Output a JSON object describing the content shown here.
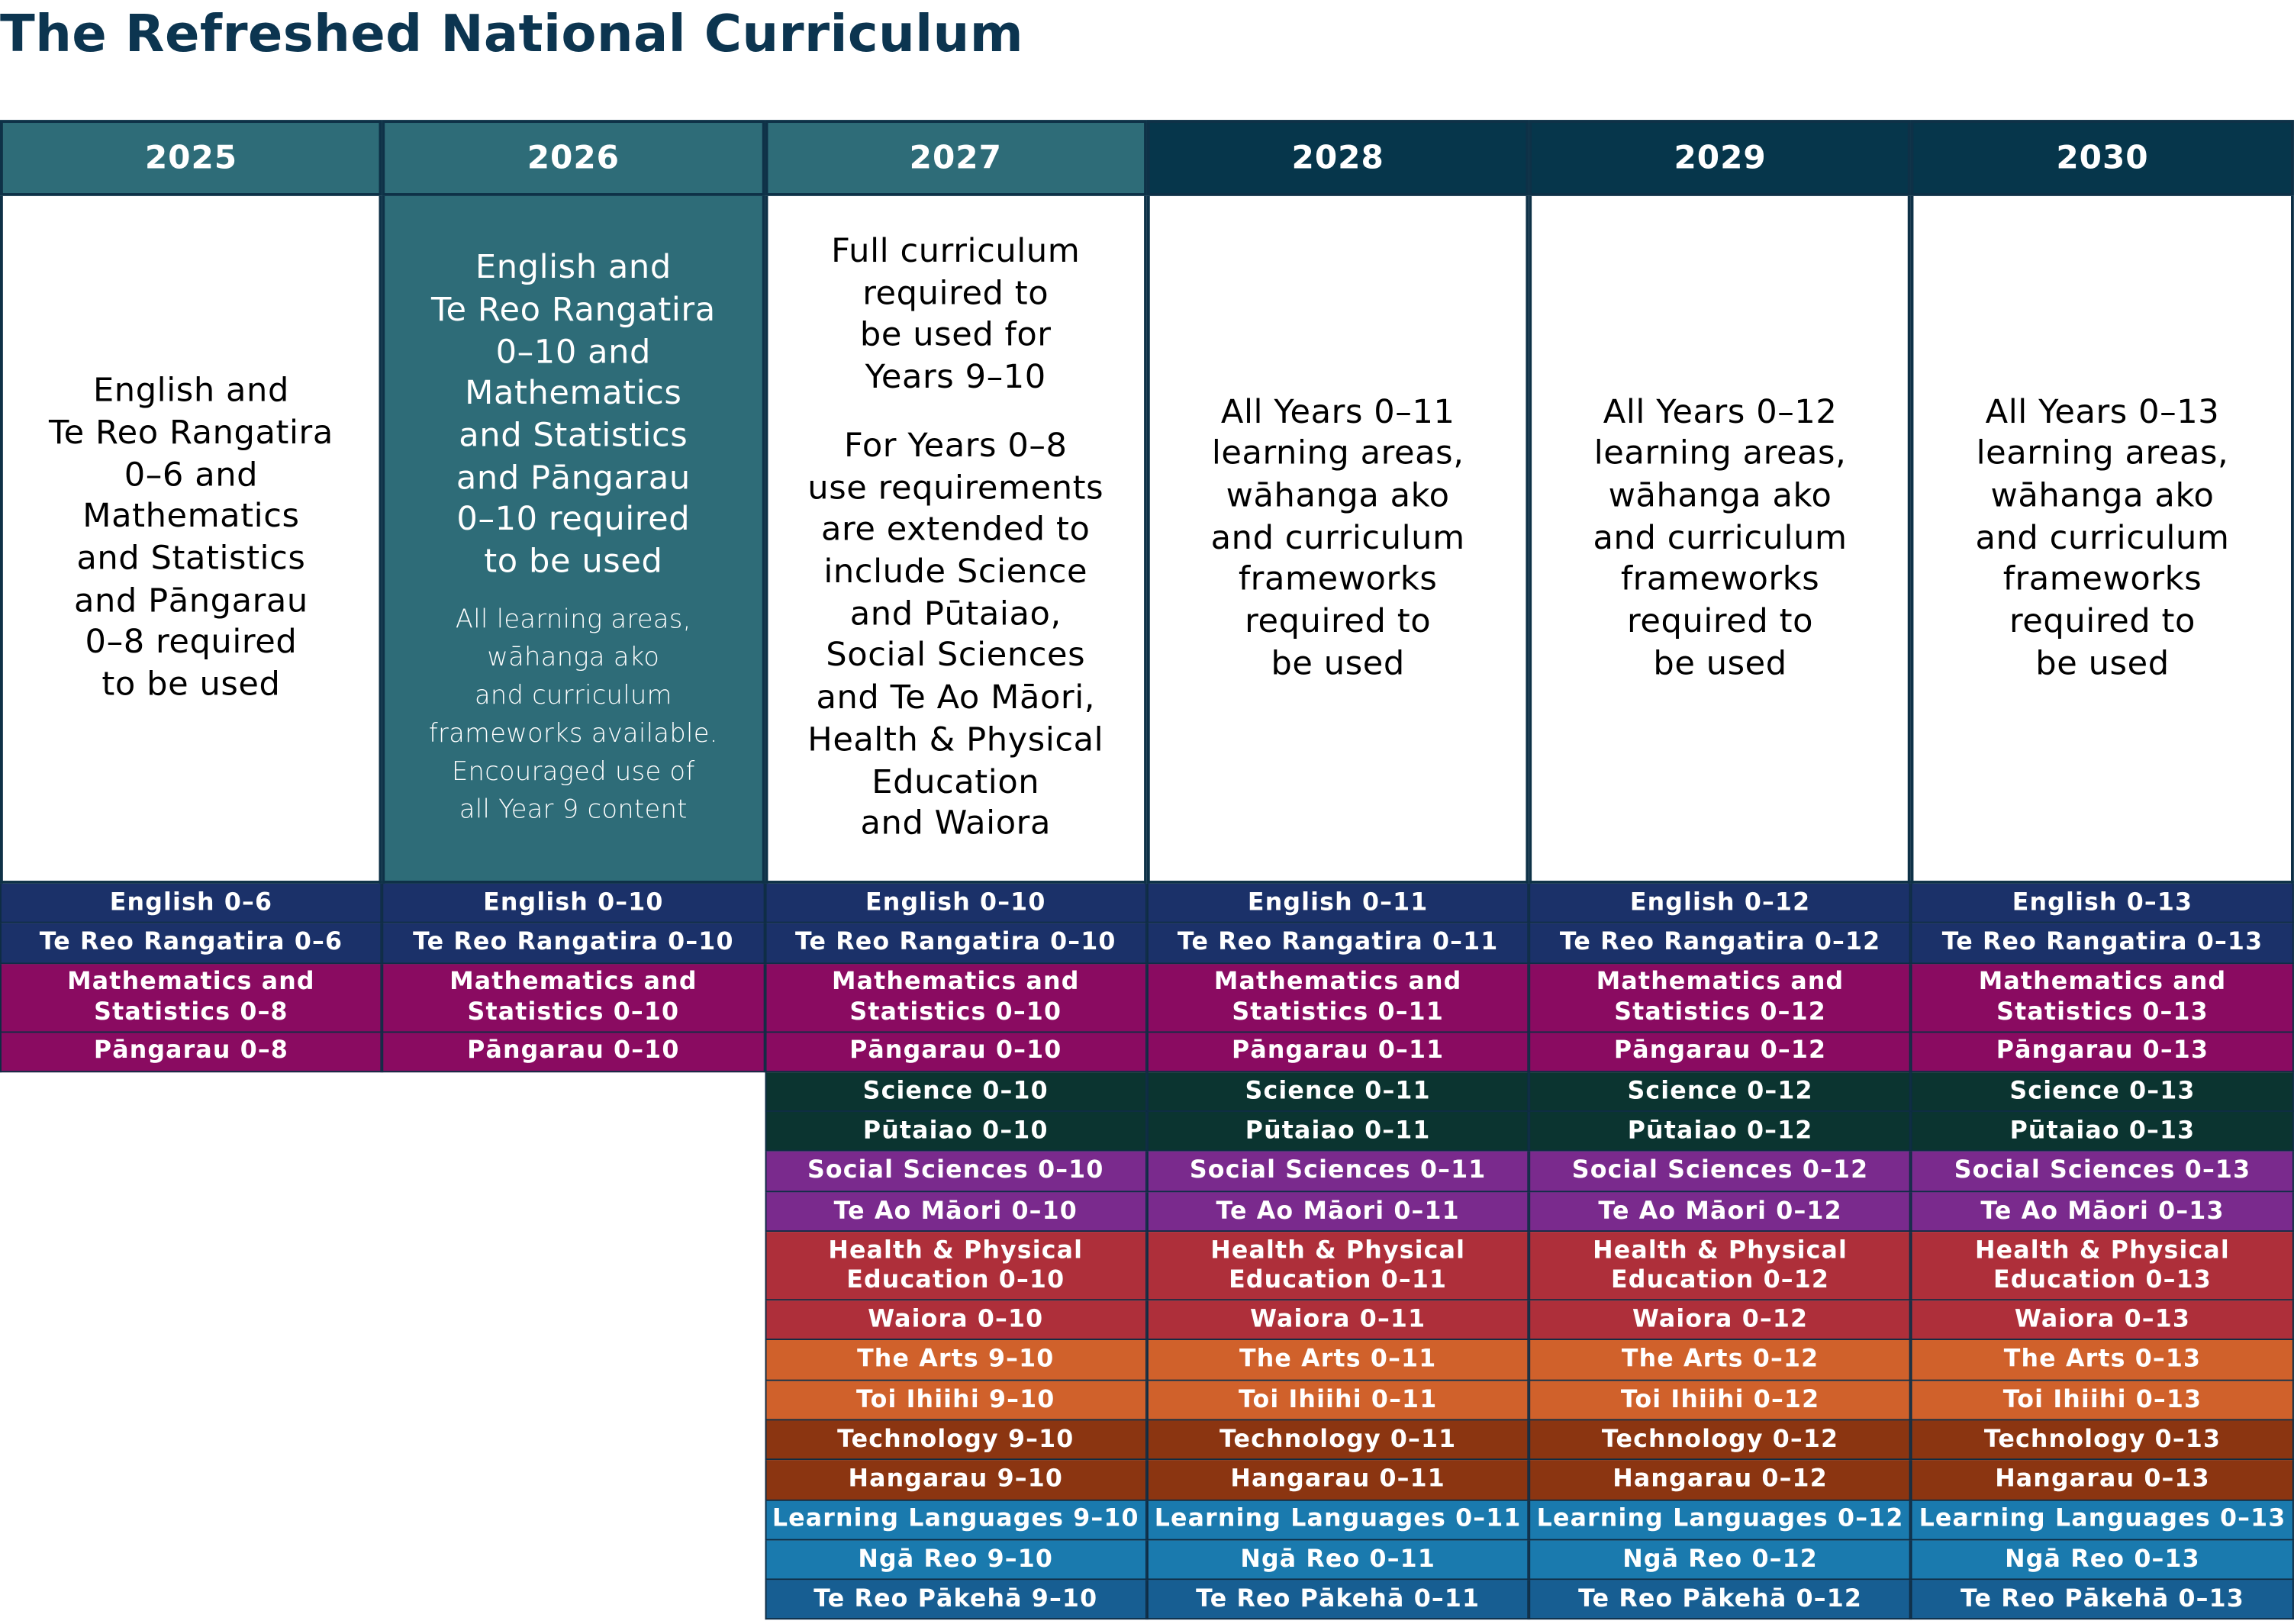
{
  "title": "The Refreshed National Curriculum",
  "columns": [
    {
      "year": "2025",
      "header_color": "#2e6c78",
      "body_color": "#ffffff",
      "text_color": "#000000",
      "paragraphs": [
        "English and\nTe Reo Rangatira\n0–6 and\nMathematics\nand Statistics\nand Pāngarau\n0–8 required\nto be used"
      ],
      "subjects": [
        {
          "label": "English 0–6",
          "color": "#1b3169"
        },
        {
          "label": "Te Reo Rangatira 0–6",
          "color": "#1b3169"
        },
        {
          "label": "Mathematics and\nStatistics 0–8",
          "color": "#8a0b61"
        },
        {
          "label": "Pāngarau 0–8",
          "color": "#8a0b61"
        }
      ]
    },
    {
      "year": "2026",
      "header_color": "#2e6c78",
      "body_color": "#2e6c78",
      "text_color": "#ffffff",
      "paragraphs": [
        "English and\nTe Reo Rangatira\n0–10 and\nMathematics\nand Statistics\nand Pāngarau\n0–10 required\nto be used"
      ],
      "note": "All learning areas,\nwāhanga ako\nand curriculum\nframeworks available.\nEncouraged use of\nall Year 9 content",
      "subjects": [
        {
          "label": "English 0–10",
          "color": "#1b3169"
        },
        {
          "label": "Te Reo Rangatira 0–10",
          "color": "#1b3169"
        },
        {
          "label": "Mathematics and\nStatistics 0–10",
          "color": "#8a0b61"
        },
        {
          "label": "Pāngarau 0–10",
          "color": "#8a0b61"
        }
      ]
    },
    {
      "year": "2027",
      "header_color": "#2e6c78",
      "body_color": "#ffffff",
      "text_color": "#000000",
      "paragraphs": [
        "Full curriculum\nrequired to\nbe used for\nYears 9–10",
        "For Years 0–8\nuse requirements\nare extended to\ninclude Science\nand Pūtaiao,\nSocial Sciences\nand Te Ao Māori,\nHealth & Physical\nEducation\nand Waiora"
      ],
      "subjects": [
        {
          "label": "English 0–10",
          "color": "#1b3169"
        },
        {
          "label": "Te Reo Rangatira 0–10",
          "color": "#1b3169"
        },
        {
          "label": "Mathematics and\nStatistics 0–10",
          "color": "#8a0b61"
        },
        {
          "label": "Pāngarau 0–10",
          "color": "#8a0b61"
        },
        {
          "label": "Science 0–10",
          "color": "#0b3430"
        },
        {
          "label": "Pūtaiao 0–10",
          "color": "#0b3430"
        },
        {
          "label": "Social Sciences 0–10",
          "color": "#7a2a8d"
        },
        {
          "label": "Te Ao Māori 0–10",
          "color": "#7a2a8d"
        },
        {
          "label": "Health & Physical\nEducation 0–10",
          "color": "#ae2f3a"
        },
        {
          "label": "Waiora 0–10",
          "color": "#ae2f3a"
        },
        {
          "label": "The Arts 9–10",
          "color": "#d0612b"
        },
        {
          "label": "Toi Ihiihi 9–10",
          "color": "#d0612b"
        },
        {
          "label": "Technology 9–10",
          "color": "#8b3511"
        },
        {
          "label": "Hangarau 9–10",
          "color": "#8b3511"
        },
        {
          "label": "Learning Languages 9–10",
          "color": "#1a7aae"
        },
        {
          "label": "Ngā Reo 9–10",
          "color": "#1a7aae"
        },
        {
          "label": "Te Reo Pākehā 9–10",
          "color": "#175e92"
        }
      ]
    },
    {
      "year": "2028",
      "header_color": "#06364b",
      "body_color": "#ffffff",
      "text_color": "#000000",
      "paragraphs": [
        "All Years 0–11\nlearning areas,\nwāhanga ako\nand curriculum\nframeworks\nrequired to\nbe used"
      ],
      "subjects": [
        {
          "label": "English 0–11",
          "color": "#1b3169"
        },
        {
          "label": "Te Reo Rangatira 0–11",
          "color": "#1b3169"
        },
        {
          "label": "Mathematics and\nStatistics 0–11",
          "color": "#8a0b61"
        },
        {
          "label": "Pāngarau 0–11",
          "color": "#8a0b61"
        },
        {
          "label": "Science 0–11",
          "color": "#0b3430"
        },
        {
          "label": "Pūtaiao 0–11",
          "color": "#0b3430"
        },
        {
          "label": "Social Sciences 0–11",
          "color": "#7a2a8d"
        },
        {
          "label": "Te Ao Māori 0–11",
          "color": "#7a2a8d"
        },
        {
          "label": "Health & Physical\nEducation 0–11",
          "color": "#ae2f3a"
        },
        {
          "label": "Waiora 0–11",
          "color": "#ae2f3a"
        },
        {
          "label": "The Arts 0–11",
          "color": "#d0612b"
        },
        {
          "label": "Toi Ihiihi 0–11",
          "color": "#d0612b"
        },
        {
          "label": "Technology 0–11",
          "color": "#8b3511"
        },
        {
          "label": "Hangarau 0–11",
          "color": "#8b3511"
        },
        {
          "label": "Learning Languages 0–11",
          "color": "#1a7aae"
        },
        {
          "label": "Ngā Reo 0–11",
          "color": "#1a7aae"
        },
        {
          "label": "Te Reo Pākehā 0–11",
          "color": "#175e92"
        }
      ]
    },
    {
      "year": "2029",
      "header_color": "#06364b",
      "body_color": "#ffffff",
      "text_color": "#000000",
      "paragraphs": [
        "All Years 0–12\nlearning areas,\nwāhanga ako\nand curriculum\nframeworks\nrequired to\nbe used"
      ],
      "subjects": [
        {
          "label": "English 0–12",
          "color": "#1b3169"
        },
        {
          "label": "Te Reo Rangatira 0–12",
          "color": "#1b3169"
        },
        {
          "label": "Mathematics and\nStatistics 0–12",
          "color": "#8a0b61"
        },
        {
          "label": "Pāngarau 0–12",
          "color": "#8a0b61"
        },
        {
          "label": "Science 0–12",
          "color": "#0b3430"
        },
        {
          "label": "Pūtaiao 0–12",
          "color": "#0b3430"
        },
        {
          "label": "Social Sciences 0–12",
          "color": "#7a2a8d"
        },
        {
          "label": "Te Ao Māori 0–12",
          "color": "#7a2a8d"
        },
        {
          "label": "Health & Physical\nEducation 0–12",
          "color": "#ae2f3a"
        },
        {
          "label": "Waiora 0–12",
          "color": "#ae2f3a"
        },
        {
          "label": "The Arts 0–12",
          "color": "#d0612b"
        },
        {
          "label": "Toi Ihiihi 0–12",
          "color": "#d0612b"
        },
        {
          "label": "Technology 0–12",
          "color": "#8b3511"
        },
        {
          "label": "Hangarau 0–12",
          "color": "#8b3511"
        },
        {
          "label": "Learning Languages 0–12",
          "color": "#1a7aae"
        },
        {
          "label": "Ngā Reo 0–12",
          "color": "#1a7aae"
        },
        {
          "label": "Te Reo Pākehā 0–12",
          "color": "#175e92"
        }
      ]
    },
    {
      "year": "2030",
      "header_color": "#06364b",
      "body_color": "#ffffff",
      "text_color": "#000000",
      "paragraphs": [
        "All Years 0–13\nlearning areas,\nwāhanga ako\nand curriculum\nframeworks\nrequired to\nbe used"
      ],
      "subjects": [
        {
          "label": "English 0–13",
          "color": "#1b3169"
        },
        {
          "label": "Te Reo Rangatira 0–13",
          "color": "#1b3169"
        },
        {
          "label": "Mathematics and\nStatistics 0–13",
          "color": "#8a0b61"
        },
        {
          "label": "Pāngarau 0–13",
          "color": "#8a0b61"
        },
        {
          "label": "Science 0–13",
          "color": "#0b3430"
        },
        {
          "label": "Pūtaiao 0–13",
          "color": "#0b3430"
        },
        {
          "label": "Social Sciences 0–13",
          "color": "#7a2a8d"
        },
        {
          "label": "Te Ao Māori 0–13",
          "color": "#7a2a8d"
        },
        {
          "label": "Health & Physical\nEducation 0–13",
          "color": "#ae2f3a"
        },
        {
          "label": "Waiora 0–13",
          "color": "#ae2f3a"
        },
        {
          "label": "The Arts 0–13",
          "color": "#d0612b"
        },
        {
          "label": "Toi Ihiihi 0–13",
          "color": "#d0612b"
        },
        {
          "label": "Technology 0–13",
          "color": "#8b3511"
        },
        {
          "label": "Hangarau 0–13",
          "color": "#8b3511"
        },
        {
          "label": "Learning Languages 0–13",
          "color": "#1a7aae"
        },
        {
          "label": "Ngā Reo 0–13",
          "color": "#1a7aae"
        },
        {
          "label": "Te Reo Pākehā 0–13",
          "color": "#175e92"
        }
      ]
    }
  ]
}
